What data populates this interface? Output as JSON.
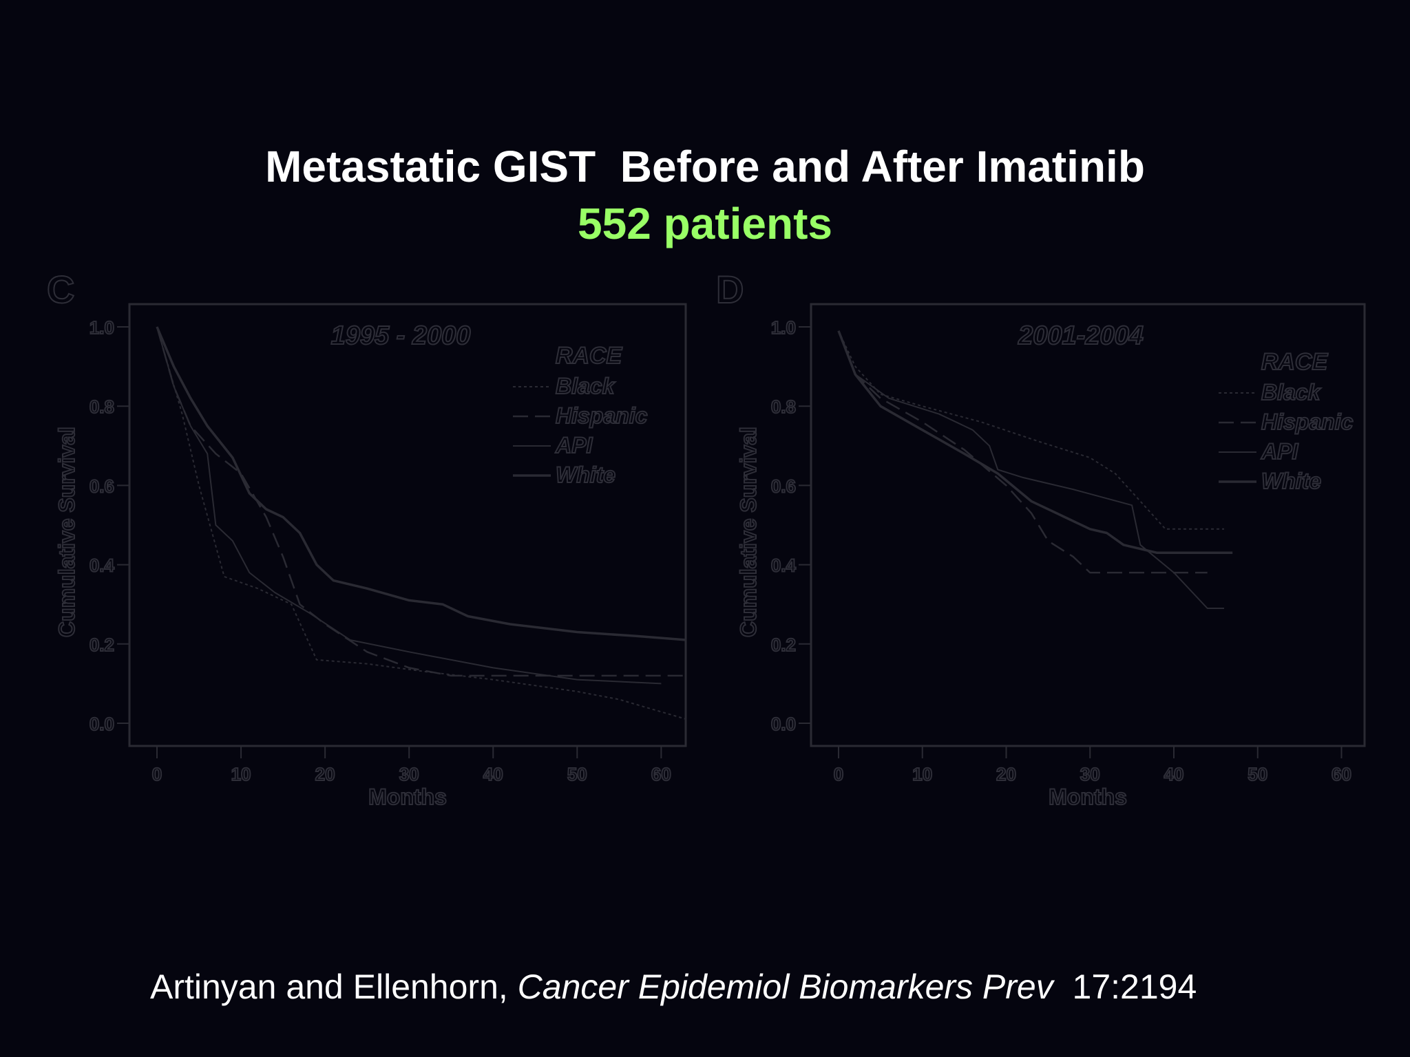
{
  "header": {
    "title": "Metastatic GIST  Before and After Imatinib",
    "subtitle": "552 patients"
  },
  "citation": {
    "authors": "Artinyan and Ellenhorn, ",
    "journal": "Cancer Epidemiol Biomarkers Prev",
    "ref": "  17:2194"
  },
  "colors": {
    "background": "#05050f",
    "title": "#ffffff",
    "subtitle": "#99ff66",
    "chart_ink": "#2a2a33"
  },
  "chart_data": [
    {
      "panel": "C",
      "type": "line",
      "title": "1995 - 2000",
      "xlabel": "Months",
      "ylabel": "Cumulative Survival",
      "xlim": [
        0,
        63
      ],
      "ylim": [
        0,
        1.0
      ],
      "xticks": [
        "0",
        "10",
        "20",
        "30",
        "40",
        "50",
        "60"
      ],
      "yticks": [
        "0.0",
        "0.2",
        "0.4",
        "0.6",
        "0.8",
        "1.0"
      ],
      "legend_title": "RACE",
      "legend_position": "top-right",
      "series": [
        {
          "name": "Black",
          "style": "dotted",
          "points": [
            [
              0,
              1.0
            ],
            [
              3,
              0.78
            ],
            [
              5,
              0.6
            ],
            [
              8,
              0.37
            ],
            [
              12,
              0.34
            ],
            [
              16,
              0.3
            ],
            [
              19,
              0.16
            ],
            [
              25,
              0.15
            ],
            [
              32,
              0.13
            ],
            [
              40,
              0.11
            ],
            [
              50,
              0.08
            ],
            [
              55,
              0.06
            ],
            [
              63,
              0.01
            ]
          ]
        },
        {
          "name": "Hispanic",
          "style": "dashed",
          "points": [
            [
              0,
              1.0
            ],
            [
              2,
              0.85
            ],
            [
              4,
              0.75
            ],
            [
              7,
              0.68
            ],
            [
              10,
              0.63
            ],
            [
              13,
              0.52
            ],
            [
              15,
              0.42
            ],
            [
              17,
              0.3
            ],
            [
              20,
              0.25
            ],
            [
              25,
              0.18
            ],
            [
              30,
              0.14
            ],
            [
              35,
              0.12
            ],
            [
              45,
              0.12
            ],
            [
              55,
              0.12
            ],
            [
              63,
              0.12
            ]
          ]
        },
        {
          "name": "API",
          "style": "solid-thin",
          "points": [
            [
              0,
              1.0
            ],
            [
              2,
              0.85
            ],
            [
              4,
              0.75
            ],
            [
              6,
              0.68
            ],
            [
              7,
              0.5
            ],
            [
              9,
              0.46
            ],
            [
              11,
              0.38
            ],
            [
              14,
              0.33
            ],
            [
              18,
              0.28
            ],
            [
              23,
              0.21
            ],
            [
              30,
              0.18
            ],
            [
              40,
              0.14
            ],
            [
              50,
              0.11
            ],
            [
              60,
              0.1
            ]
          ]
        },
        {
          "name": "White",
          "style": "solid-thick",
          "points": [
            [
              0,
              1.0
            ],
            [
              2,
              0.9
            ],
            [
              4,
              0.82
            ],
            [
              6,
              0.75
            ],
            [
              9,
              0.67
            ],
            [
              11,
              0.58
            ],
            [
              13,
              0.54
            ],
            [
              15,
              0.52
            ],
            [
              17,
              0.48
            ],
            [
              19,
              0.4
            ],
            [
              21,
              0.36
            ],
            [
              25,
              0.34
            ],
            [
              30,
              0.31
            ],
            [
              34,
              0.3
            ],
            [
              37,
              0.27
            ],
            [
              42,
              0.25
            ],
            [
              50,
              0.23
            ],
            [
              57,
              0.22
            ],
            [
              63,
              0.21
            ]
          ]
        }
      ]
    },
    {
      "panel": "D",
      "type": "line",
      "title": "2001-2004",
      "xlabel": "Months",
      "ylabel": "Cumulative Survival",
      "xlim": [
        0,
        63
      ],
      "ylim": [
        0,
        1.0
      ],
      "xticks": [
        "0",
        "10",
        "20",
        "30",
        "40",
        "50",
        "60"
      ],
      "yticks": [
        "0.0",
        "0.2",
        "0.4",
        "0.6",
        "0.8",
        "1.0"
      ],
      "legend_title": "RACE",
      "legend_position": "top-right",
      "series": [
        {
          "name": "Black",
          "style": "dotted",
          "points": [
            [
              0,
              0.99
            ],
            [
              2,
              0.9
            ],
            [
              5,
              0.83
            ],
            [
              10,
              0.8
            ],
            [
              17,
              0.76
            ],
            [
              24,
              0.71
            ],
            [
              30,
              0.67
            ],
            [
              33,
              0.63
            ],
            [
              36,
              0.56
            ],
            [
              39,
              0.49
            ],
            [
              46,
              0.49
            ]
          ]
        },
        {
          "name": "Hispanic",
          "style": "dashed",
          "points": [
            [
              0,
              0.99
            ],
            [
              2,
              0.88
            ],
            [
              5,
              0.82
            ],
            [
              10,
              0.76
            ],
            [
              15,
              0.69
            ],
            [
              20,
              0.6
            ],
            [
              23,
              0.53
            ],
            [
              25,
              0.46
            ],
            [
              28,
              0.42
            ],
            [
              30,
              0.38
            ],
            [
              36,
              0.38
            ],
            [
              44,
              0.38
            ]
          ]
        },
        {
          "name": "API",
          "style": "solid-thin",
          "points": [
            [
              0,
              0.99
            ],
            [
              2,
              0.88
            ],
            [
              6,
              0.82
            ],
            [
              12,
              0.78
            ],
            [
              16,
              0.74
            ],
            [
              18,
              0.7
            ],
            [
              19,
              0.64
            ],
            [
              22,
              0.62
            ],
            [
              28,
              0.59
            ],
            [
              35,
              0.55
            ],
            [
              36,
              0.45
            ],
            [
              40,
              0.38
            ],
            [
              44,
              0.29
            ],
            [
              46,
              0.29
            ]
          ]
        },
        {
          "name": "White",
          "style": "solid-thick",
          "points": [
            [
              0,
              0.99
            ],
            [
              2,
              0.88
            ],
            [
              5,
              0.8
            ],
            [
              10,
              0.74
            ],
            [
              15,
              0.68
            ],
            [
              19,
              0.63
            ],
            [
              23,
              0.56
            ],
            [
              27,
              0.52
            ],
            [
              30,
              0.49
            ],
            [
              32,
              0.48
            ],
            [
              34,
              0.45
            ],
            [
              38,
              0.43
            ],
            [
              47,
              0.43
            ]
          ]
        }
      ]
    }
  ]
}
